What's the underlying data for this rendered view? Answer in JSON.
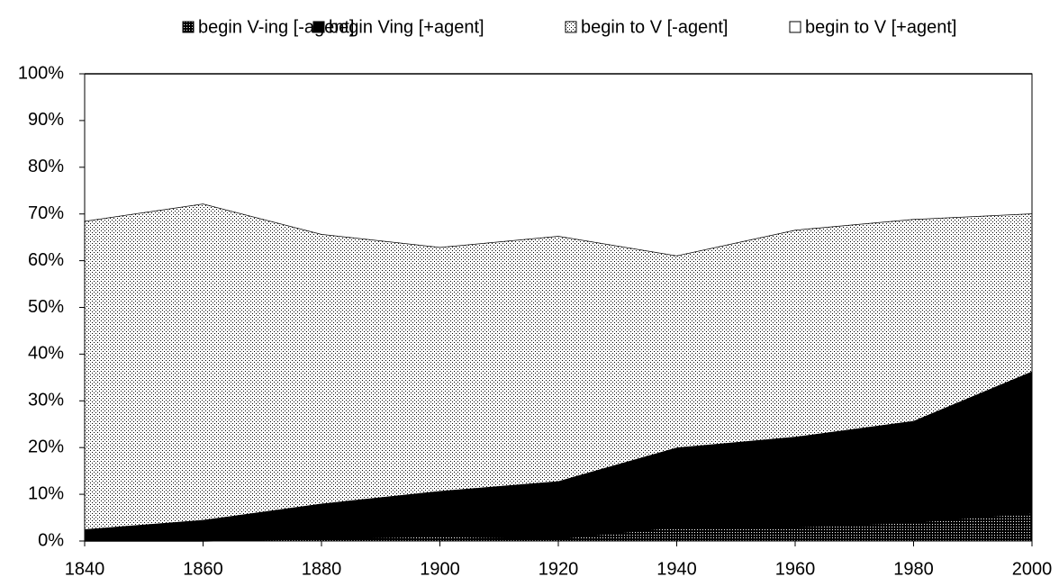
{
  "chart_data": {
    "type": "area",
    "stacked": true,
    "x": [
      1840,
      1860,
      1880,
      1900,
      1920,
      1940,
      1960,
      1980,
      2000
    ],
    "series": [
      {
        "name": "begin V-ing [-agent]",
        "color": "#000000",
        "pattern": "checker",
        "values": [
          0,
          0,
          0.5,
          1,
          0.5,
          3,
          3,
          4,
          6
        ]
      },
      {
        "name": "begin Ving [+agent]",
        "color": "#000000",
        "pattern": "solid",
        "values": [
          2.5,
          4.5,
          7.5,
          9.7,
          12.3,
          17,
          19.3,
          21.7,
          30.3
        ]
      },
      {
        "name": "begin to V [-agent]",
        "color": "#000000",
        "pattern": "dots",
        "values": [
          66,
          67.7,
          57.7,
          52.2,
          52.5,
          41.1,
          44.3,
          43.2,
          33.8
        ]
      },
      {
        "name": "begin to V [+agent]",
        "color": "#ffffff",
        "pattern": "none",
        "values": [
          31.5,
          27.8,
          34.3,
          37.1,
          34.7,
          38.9,
          33.4,
          31.1,
          29.9
        ]
      }
    ],
    "xlim": [
      1840,
      2000
    ],
    "xticks": [
      1840,
      1860,
      1880,
      1900,
      1920,
      1940,
      1960,
      1980,
      2000
    ],
    "ylim": [
      0,
      100
    ],
    "yticks": [
      {
        "value": 0,
        "label": "0%"
      },
      {
        "value": 10,
        "label": "10%"
      },
      {
        "value": 20,
        "label": "20%"
      },
      {
        "value": 30,
        "label": "30%"
      },
      {
        "value": 40,
        "label": "40%"
      },
      {
        "value": 50,
        "label": "50%"
      },
      {
        "value": 60,
        "label": "60%"
      },
      {
        "value": 70,
        "label": "70%"
      },
      {
        "value": 80,
        "label": "80%"
      },
      {
        "value": 90,
        "label": "90%"
      },
      {
        "value": 100,
        "label": "100%"
      }
    ],
    "legend": "top",
    "grid": false
  }
}
